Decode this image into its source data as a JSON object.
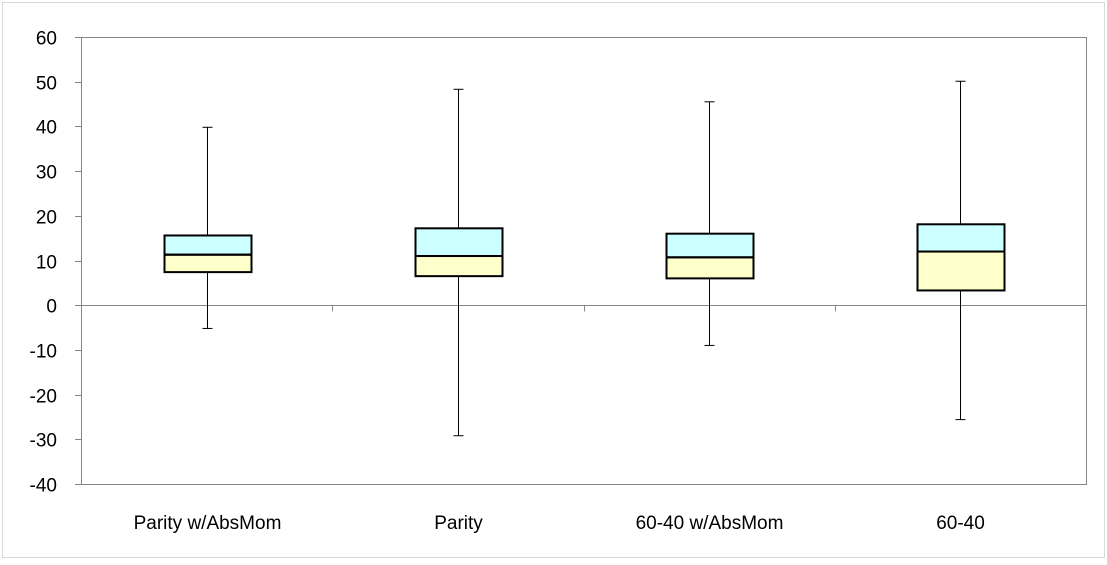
{
  "chart_data": {
    "type": "box",
    "title": "",
    "xlabel": "",
    "ylabel": "",
    "categories": [
      "Parity w/AbsMom",
      "Parity",
      "60-40 w/AbsMom",
      "60-40"
    ],
    "boxes": [
      {
        "min": -5.2,
        "q1": 7.4,
        "median": 11.3,
        "q3": 15.6,
        "max": 39.8
      },
      {
        "min": -29.2,
        "q1": 6.5,
        "median": 11.0,
        "q3": 17.2,
        "max": 48.3
      },
      {
        "min": -9.0,
        "q1": 6.0,
        "median": 10.7,
        "q3": 16.0,
        "max": 45.5
      },
      {
        "min": -25.6,
        "q1": 3.3,
        "median": 12.0,
        "q3": 18.1,
        "max": 50.1
      }
    ],
    "ylim": [
      -40,
      60
    ],
    "yticks": [
      60,
      50,
      40,
      30,
      20,
      10,
      0,
      -10,
      -20,
      -30,
      -40
    ],
    "ytick_labels": [
      "60",
      "50",
      "40",
      "30",
      "20",
      "10",
      "0",
      "-10",
      "-20",
      "-30",
      "-40"
    ],
    "grid": false,
    "legend": "none",
    "colors": {
      "upper_box": "#ccffff",
      "lower_box": "#ffffcc",
      "outline": "#000000",
      "axis": "#868686",
      "frame": "#d9d9d9"
    }
  }
}
